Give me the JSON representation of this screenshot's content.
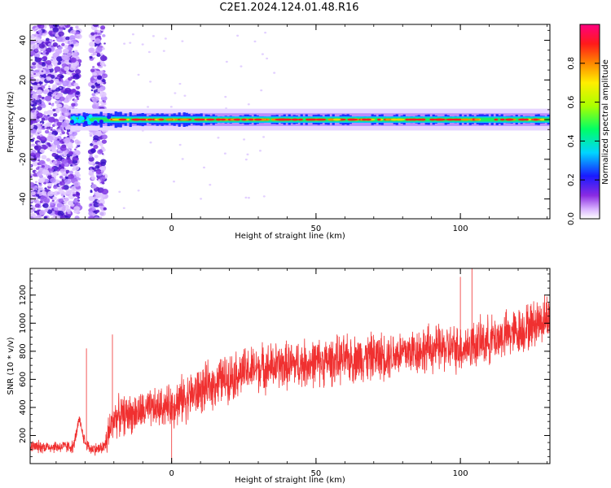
{
  "title": "C2E1.2024.124.01.48.R16",
  "colors": {
    "snr_line": "#f03030",
    "spectrogram_peak": "#e8003a",
    "spectrogram_low": "#cc99ff"
  },
  "chart_data": [
    {
      "type": "heatmap",
      "name": "spectrogram",
      "xlabel": "Height of straight line (km)",
      "ylabel": "Frequency (Hz)",
      "xlim": [
        -49,
        131
      ],
      "ylim": [
        -50,
        48
      ],
      "xticks": [
        0,
        50,
        100
      ],
      "yticks": [
        -40,
        -20,
        0,
        20,
        40
      ],
      "grid": false,
      "colorbar": {
        "label": "Normalized spectral amplitude",
        "range": [
          0,
          1
        ],
        "ticks": [
          0.0,
          0.2,
          0.4,
          0.6,
          0.8
        ]
      },
      "features": {
        "noise_band_1_km": [
          -49,
          -32
        ],
        "noise_band_2_km": [
          -28,
          -23
        ],
        "carrier_frequency_hz": 0,
        "carrier_start_km": -35,
        "carrier_end_km": 131,
        "carrier_halfwidth_hz": [
          1,
          4
        ]
      }
    },
    {
      "type": "line",
      "name": "snr",
      "xlabel": "Height of straight line (km)",
      "ylabel": "SNR (10 * v/v)",
      "xlim": [
        -49,
        131
      ],
      "ylim": [
        0,
        1390
      ],
      "xticks": [
        0,
        50,
        100
      ],
      "yticks": [
        200,
        400,
        600,
        800,
        1000,
        1200
      ],
      "grid": false,
      "trend": {
        "x": [
          -49,
          -40,
          -34,
          -32,
          -30,
          -28,
          -25,
          -23,
          -20,
          -10,
          0,
          10,
          20,
          30,
          40,
          50,
          60,
          70,
          80,
          90,
          100,
          110,
          120,
          131
        ],
        "y": [
          120,
          120,
          120,
          310,
          150,
          105,
          105,
          130,
          330,
          370,
          420,
          520,
          620,
          680,
          700,
          720,
          740,
          760,
          790,
          820,
          820,
          880,
          940,
          1050
        ]
      },
      "spikes": [
        {
          "x": -29.5,
          "y": 820
        },
        {
          "x": -20.5,
          "y": 920
        },
        {
          "x": 0,
          "y": 10
        },
        {
          "x": 104,
          "y": 1390
        },
        {
          "x": 100,
          "y": 1330
        }
      ]
    }
  ]
}
